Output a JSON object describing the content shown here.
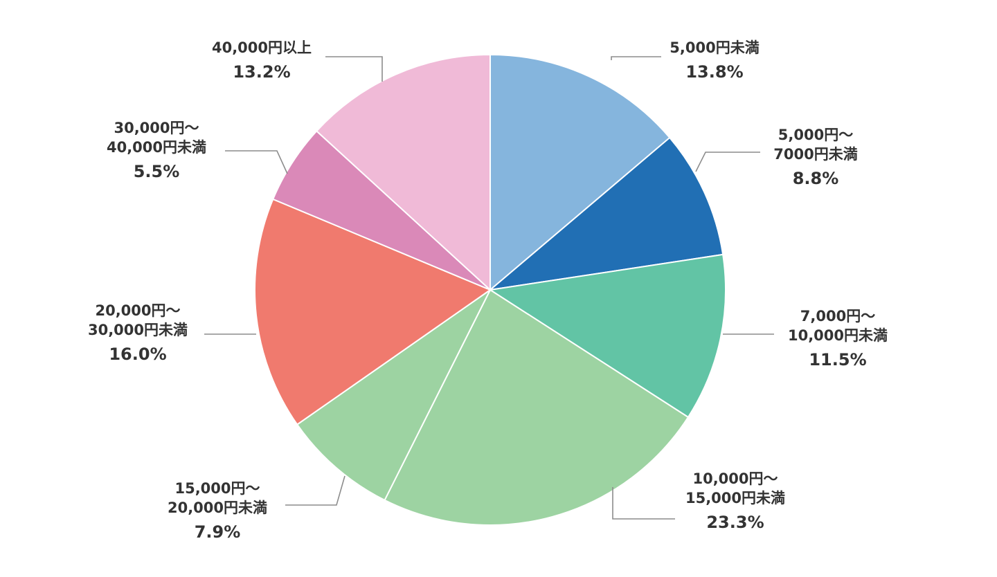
{
  "chart_data": {
    "type": "pie",
    "title": "",
    "start": "top",
    "direction": "clockwise",
    "categories": [
      "5,000円未満",
      "5,000円～7000円未満",
      "7,000円～10,000円未満",
      "10,000円～15,000円未満",
      "15,000円～20,000円未満",
      "20,000円～30,000円未満",
      "30,000円～40,000円未満",
      "40,000円以上"
    ],
    "values": [
      13.8,
      8.8,
      11.5,
      23.3,
      7.9,
      16.0,
      5.5,
      13.2
    ],
    "colors": [
      "#85b5dd",
      "#216fb4",
      "#62c4a5",
      "#9dd3a2",
      "#9dd3a2",
      "#f07a6e",
      "#da89b8",
      "#f0bad7"
    ],
    "labels": [
      {
        "lines": [
          "5,000円未満"
        ],
        "value": "13.8%"
      },
      {
        "lines": [
          "5,000円～",
          "7000円未満"
        ],
        "value": "8.8%"
      },
      {
        "lines": [
          "7,000円～",
          "10,000円未満"
        ],
        "value": "11.5%"
      },
      {
        "lines": [
          "10,000円～",
          "15,000円未満"
        ],
        "value": "23.3%"
      },
      {
        "lines": [
          "15,000円～",
          "20,000円未満"
        ],
        "value": "7.9%"
      },
      {
        "lines": [
          "20,000円～",
          "30,000円未満"
        ],
        "value": "16.0%"
      },
      {
        "lines": [
          "30,000円～",
          "40,000円未満"
        ],
        "value": "5.5%"
      },
      {
        "lines": [
          "40,000円以上"
        ],
        "value": "13.2%"
      }
    ]
  }
}
